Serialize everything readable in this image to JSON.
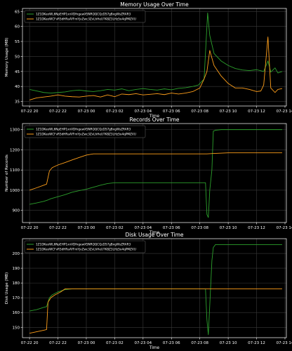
{
  "colors": {
    "background": "#000000",
    "axes_face": "#000000",
    "text": "#ffffff",
    "grid": "#3a3a3a",
    "series_green": "#2ca02c",
    "series_orange": "#ff9f1a"
  },
  "chart_data": [
    {
      "type": "line",
      "title": "Memory Usage Over Time",
      "xlabel": "Time",
      "ylabel": "Memory Usage (MB)",
      "x_ticks": [
        "07-22 20",
        "07-22 22",
        "07-23 00",
        "07-23 02",
        "07-23 04",
        "07-23 06",
        "07-23 08",
        "07-23 10",
        "07-23 12",
        "07-23 14"
      ],
      "xlim": [
        0,
        18.6
      ],
      "ylim": [
        33.5,
        66
      ],
      "y_ticks": [
        35,
        40,
        45,
        50,
        55,
        60,
        65
      ],
      "grid": true,
      "legend_placement": "top-left",
      "series": [
        {
          "name": "1Z1DKeoWL6NpEHP1xnVDfngewXSNRQQCQzD57gBxgWsZRAR3",
          "color": "#2ca02c",
          "points": [
            [
              0.5,
              39
            ],
            [
              1,
              38.5
            ],
            [
              1.5,
              38
            ],
            [
              2,
              37.8
            ],
            [
              2.5,
              38
            ],
            [
              3,
              38.2
            ],
            [
              3.5,
              38.6
            ],
            [
              4,
              38.8
            ],
            [
              4.5,
              38.5
            ],
            [
              5,
              38.3
            ],
            [
              5.5,
              38.6
            ],
            [
              6,
              39
            ],
            [
              6.5,
              38.8
            ],
            [
              7,
              39.2
            ],
            [
              7.5,
              38.6
            ],
            [
              8,
              39
            ],
            [
              8.5,
              39.3
            ],
            [
              9,
              39
            ],
            [
              9.5,
              38.8
            ],
            [
              10,
              39.2
            ],
            [
              10.5,
              38.9
            ],
            [
              11,
              39.4
            ],
            [
              11.5,
              39.6
            ],
            [
              12,
              40
            ],
            [
              12.4,
              40.5
            ],
            [
              12.8,
              42.5
            ],
            [
              13.05,
              64.5
            ],
            [
              13.2,
              57
            ],
            [
              13.5,
              51
            ],
            [
              14,
              48.5
            ],
            [
              14.5,
              47
            ],
            [
              15,
              46
            ],
            [
              15.5,
              45.5
            ],
            [
              16,
              45.3
            ],
            [
              16.5,
              45.6
            ],
            [
              17,
              45
            ],
            [
              17.3,
              48.5
            ],
            [
              17.5,
              44.8
            ],
            [
              17.8,
              46.2
            ],
            [
              18,
              44.5
            ],
            [
              18.3,
              45
            ]
          ]
        },
        {
          "name": "1Z1DKeoWCFvR5dHRaAYFmYjvZwc3ZvLhHeU7K8Z3LHz5o4qPMZVU",
          "color": "#ff9f1a",
          "points": [
            [
              0.5,
              35.5
            ],
            [
              1,
              36.2
            ],
            [
              1.5,
              36.5
            ],
            [
              2,
              36.8
            ],
            [
              2.5,
              37.2
            ],
            [
              3,
              36.8
            ],
            [
              3.5,
              36.6
            ],
            [
              4,
              36.5
            ],
            [
              4.5,
              36.8
            ],
            [
              5,
              37
            ],
            [
              5.5,
              36.5
            ],
            [
              6,
              37.2
            ],
            [
              6.5,
              36.6
            ],
            [
              7,
              37.5
            ],
            [
              7.5,
              37.3
            ],
            [
              8,
              37.6
            ],
            [
              8.5,
              37.2
            ],
            [
              9,
              37.4
            ],
            [
              9.5,
              37.6
            ],
            [
              10,
              37.3
            ],
            [
              10.5,
              37.8
            ],
            [
              11,
              37.5
            ],
            [
              11.5,
              37.8
            ],
            [
              12,
              38.3
            ],
            [
              12.5,
              39.5
            ],
            [
              12.8,
              42.5
            ],
            [
              13,
              45
            ],
            [
              13.2,
              52
            ],
            [
              13.5,
              47
            ],
            [
              14,
              43.5
            ],
            [
              14.5,
              41
            ],
            [
              15,
              39.5
            ],
            [
              15.5,
              39.5
            ],
            [
              16,
              39
            ],
            [
              16.5,
              38.3
            ],
            [
              16.8,
              38.5
            ],
            [
              17,
              40.5
            ],
            [
              17.3,
              56.5
            ],
            [
              17.5,
              39.5
            ],
            [
              17.8,
              38
            ],
            [
              18,
              39
            ],
            [
              18.3,
              39.3
            ]
          ]
        }
      ]
    },
    {
      "type": "line",
      "title": "Records Over Time",
      "xlabel": "Time",
      "ylabel": "Number of Records",
      "x_ticks": [
        "07-22 20",
        "07-22 22",
        "07-23 00",
        "07-23 02",
        "07-23 04",
        "07-23 06",
        "07-23 08",
        "07-23 10",
        "07-23 12",
        "07-23 14"
      ],
      "xlim": [
        0,
        18.6
      ],
      "ylim": [
        840,
        1330
      ],
      "y_ticks": [
        900,
        1000,
        1100,
        1200,
        1300
      ],
      "grid": true,
      "legend_placement": "top-left",
      "series": [
        {
          "name": "1Z1DKeoWL6NpEHP1xnVDfngewXSNRQQCQzD57gBxgWsZRAR3",
          "color": "#2ca02c",
          "points": [
            [
              0.5,
              930
            ],
            [
              1,
              937
            ],
            [
              1.5,
              945
            ],
            [
              1.8,
              952
            ],
            [
              2,
              958
            ],
            [
              2.5,
              968
            ],
            [
              3,
              978
            ],
            [
              3.5,
              990
            ],
            [
              4,
              998
            ],
            [
              4.5,
              1005
            ],
            [
              5,
              1015
            ],
            [
              5.5,
              1025
            ],
            [
              6,
              1033
            ],
            [
              6.5,
              1037
            ],
            [
              7,
              1037
            ],
            [
              8,
              1037
            ],
            [
              9,
              1037
            ],
            [
              10,
              1037
            ],
            [
              11,
              1037
            ],
            [
              12,
              1037
            ],
            [
              12.9,
              1037
            ],
            [
              13.0,
              880
            ],
            [
              13.1,
              865
            ],
            [
              13.2,
              1000
            ],
            [
              13.35,
              1100
            ],
            [
              13.45,
              1292
            ],
            [
              13.6,
              1297
            ],
            [
              14,
              1300
            ],
            [
              15,
              1300
            ],
            [
              16,
              1300
            ],
            [
              17,
              1300
            ],
            [
              18,
              1300
            ],
            [
              18.3,
              1300
            ]
          ]
        },
        {
          "name": "1Z1DKeoWCFvR5dHRaAYFmYjvZwc3ZvLhHeU7K8Z3LHz5o4qPMZVU",
          "color": "#ff9f1a",
          "points": [
            [
              0.5,
              1000
            ],
            [
              1,
              1012
            ],
            [
              1.5,
              1025
            ],
            [
              1.7,
              1030
            ],
            [
              1.9,
              1095
            ],
            [
              2.1,
              1112
            ],
            [
              2.5,
              1125
            ],
            [
              3,
              1137
            ],
            [
              3.5,
              1150
            ],
            [
              4,
              1162
            ],
            [
              4.5,
              1174
            ],
            [
              5,
              1180
            ],
            [
              6,
              1180
            ],
            [
              7,
              1180
            ],
            [
              8,
              1180
            ],
            [
              9,
              1180
            ],
            [
              10,
              1180
            ],
            [
              11,
              1180
            ],
            [
              12,
              1180
            ],
            [
              13,
              1180
            ],
            [
              13.5,
              1182
            ],
            [
              14.5,
              1185
            ],
            [
              16,
              1185
            ],
            [
              17,
              1185
            ],
            [
              18,
              1185
            ],
            [
              18.3,
              1185
            ]
          ]
        }
      ]
    },
    {
      "type": "line",
      "title": "Disk Usage Over Time",
      "xlabel": "Time",
      "ylabel": "Disk Usage (MB)",
      "x_ticks": [
        "07-22 20",
        "07-22 22",
        "07-23 00",
        "07-23 02",
        "07-23 04",
        "07-23 06",
        "07-23 08",
        "07-23 10",
        "07-23 12",
        "07-23 14"
      ],
      "xlim": [
        0,
        18.6
      ],
      "ylim": [
        143,
        210
      ],
      "y_ticks": [
        150,
        160,
        170,
        180,
        190,
        200
      ],
      "grid": true,
      "legend_placement": "top-left",
      "series": [
        {
          "name": "1Z1DKeoWL6NpEHP1xnVDfngewXSNRQQCQzD57gBxgWsZRAR3",
          "color": "#2ca02c",
          "points": [
            [
              0.5,
              161
            ],
            [
              1,
              162
            ],
            [
              1.5,
              163.5
            ],
            [
              1.7,
              164
            ],
            [
              1.9,
              170
            ],
            [
              2.1,
              172
            ],
            [
              2.5,
              174
            ],
            [
              3,
              175.5
            ],
            [
              3.5,
              176
            ],
            [
              4,
              176
            ],
            [
              5,
              176
            ],
            [
              6,
              176
            ],
            [
              7,
              176
            ],
            [
              8,
              176
            ],
            [
              9,
              176
            ],
            [
              10,
              176
            ],
            [
              11,
              176
            ],
            [
              12,
              176
            ],
            [
              12.9,
              176
            ],
            [
              13.0,
              155
            ],
            [
              13.1,
              145
            ],
            [
              13.2,
              165
            ],
            [
              13.35,
              195
            ],
            [
              13.45,
              204
            ],
            [
              13.6,
              206
            ],
            [
              14,
              206
            ],
            [
              15,
              206
            ],
            [
              16,
              206
            ],
            [
              17,
              206
            ],
            [
              18,
              206
            ],
            [
              18.3,
              206
            ]
          ]
        },
        {
          "name": "1Z1DKeoWCFvR5dHRaAYFmYjvZwc3ZvLhHeU7K8Z3LHz5o4qPMZVU",
          "color": "#ff9f1a",
          "points": [
            [
              0.5,
              146
            ],
            [
              1,
              147
            ],
            [
              1.5,
              148
            ],
            [
              1.7,
              148.5
            ],
            [
              1.8,
              167
            ],
            [
              2.0,
              170
            ],
            [
              2.3,
              172
            ],
            [
              2.7,
              174
            ],
            [
              3,
              176
            ],
            [
              4,
              176
            ],
            [
              5,
              176
            ],
            [
              6,
              176
            ],
            [
              7,
              176
            ],
            [
              8,
              176
            ],
            [
              9,
              176
            ],
            [
              10,
              176
            ],
            [
              11,
              176
            ],
            [
              12,
              176
            ],
            [
              13,
              176
            ],
            [
              14,
              176
            ],
            [
              15,
              176
            ],
            [
              16,
              176
            ],
            [
              17,
              176
            ],
            [
              18,
              176
            ],
            [
              18.3,
              176
            ]
          ]
        }
      ]
    }
  ]
}
